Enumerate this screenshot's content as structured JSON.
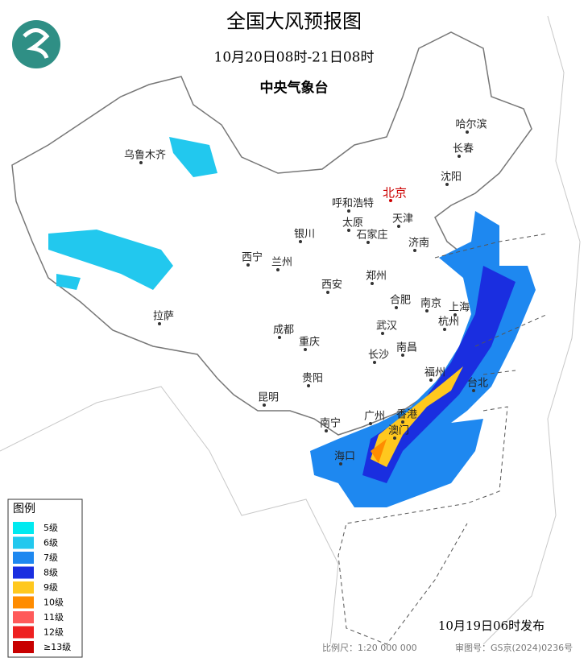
{
  "header": {
    "title": "全国大风预报图",
    "subtitle": "10月20日08时-21日08时",
    "agency": "中央气象台"
  },
  "cities": [
    "哈尔滨",
    "长春",
    "沈阳",
    "乌鲁木齐",
    "北京",
    "呼和浩特",
    "天津",
    "太原",
    "石家庄",
    "银川",
    "济南",
    "西宁",
    "兰州",
    "郑州",
    "西安",
    "合肥",
    "南京",
    "上海",
    "成都",
    "武汉",
    "杭州",
    "拉萨",
    "重庆",
    "南昌",
    "长沙",
    "贵阳",
    "福州",
    "台北",
    "昆明",
    "南宁",
    "广州",
    "香港",
    "澳门",
    "海口"
  ],
  "legend": {
    "title": "图例",
    "items": [
      {
        "label": "5级",
        "color": "#00eaf0"
      },
      {
        "label": "6级",
        "color": "#22c8ee"
      },
      {
        "label": "7级",
        "color": "#1e88f0"
      },
      {
        "label": "8级",
        "color": "#1a2ee0"
      },
      {
        "label": "9级",
        "color": "#ffc81e"
      },
      {
        "label": "10级",
        "color": "#ff8c00"
      },
      {
        "label": "11级",
        "color": "#ff5a5a"
      },
      {
        "label": "12级",
        "color": "#ee2020"
      },
      {
        "label": "≥13级",
        "color": "#c80000"
      }
    ]
  },
  "footer": {
    "issued": "10月19日06时发布",
    "scale": "比例尺：1:20 000 000",
    "review_number": "审图号：GS京(2024)0236号"
  }
}
